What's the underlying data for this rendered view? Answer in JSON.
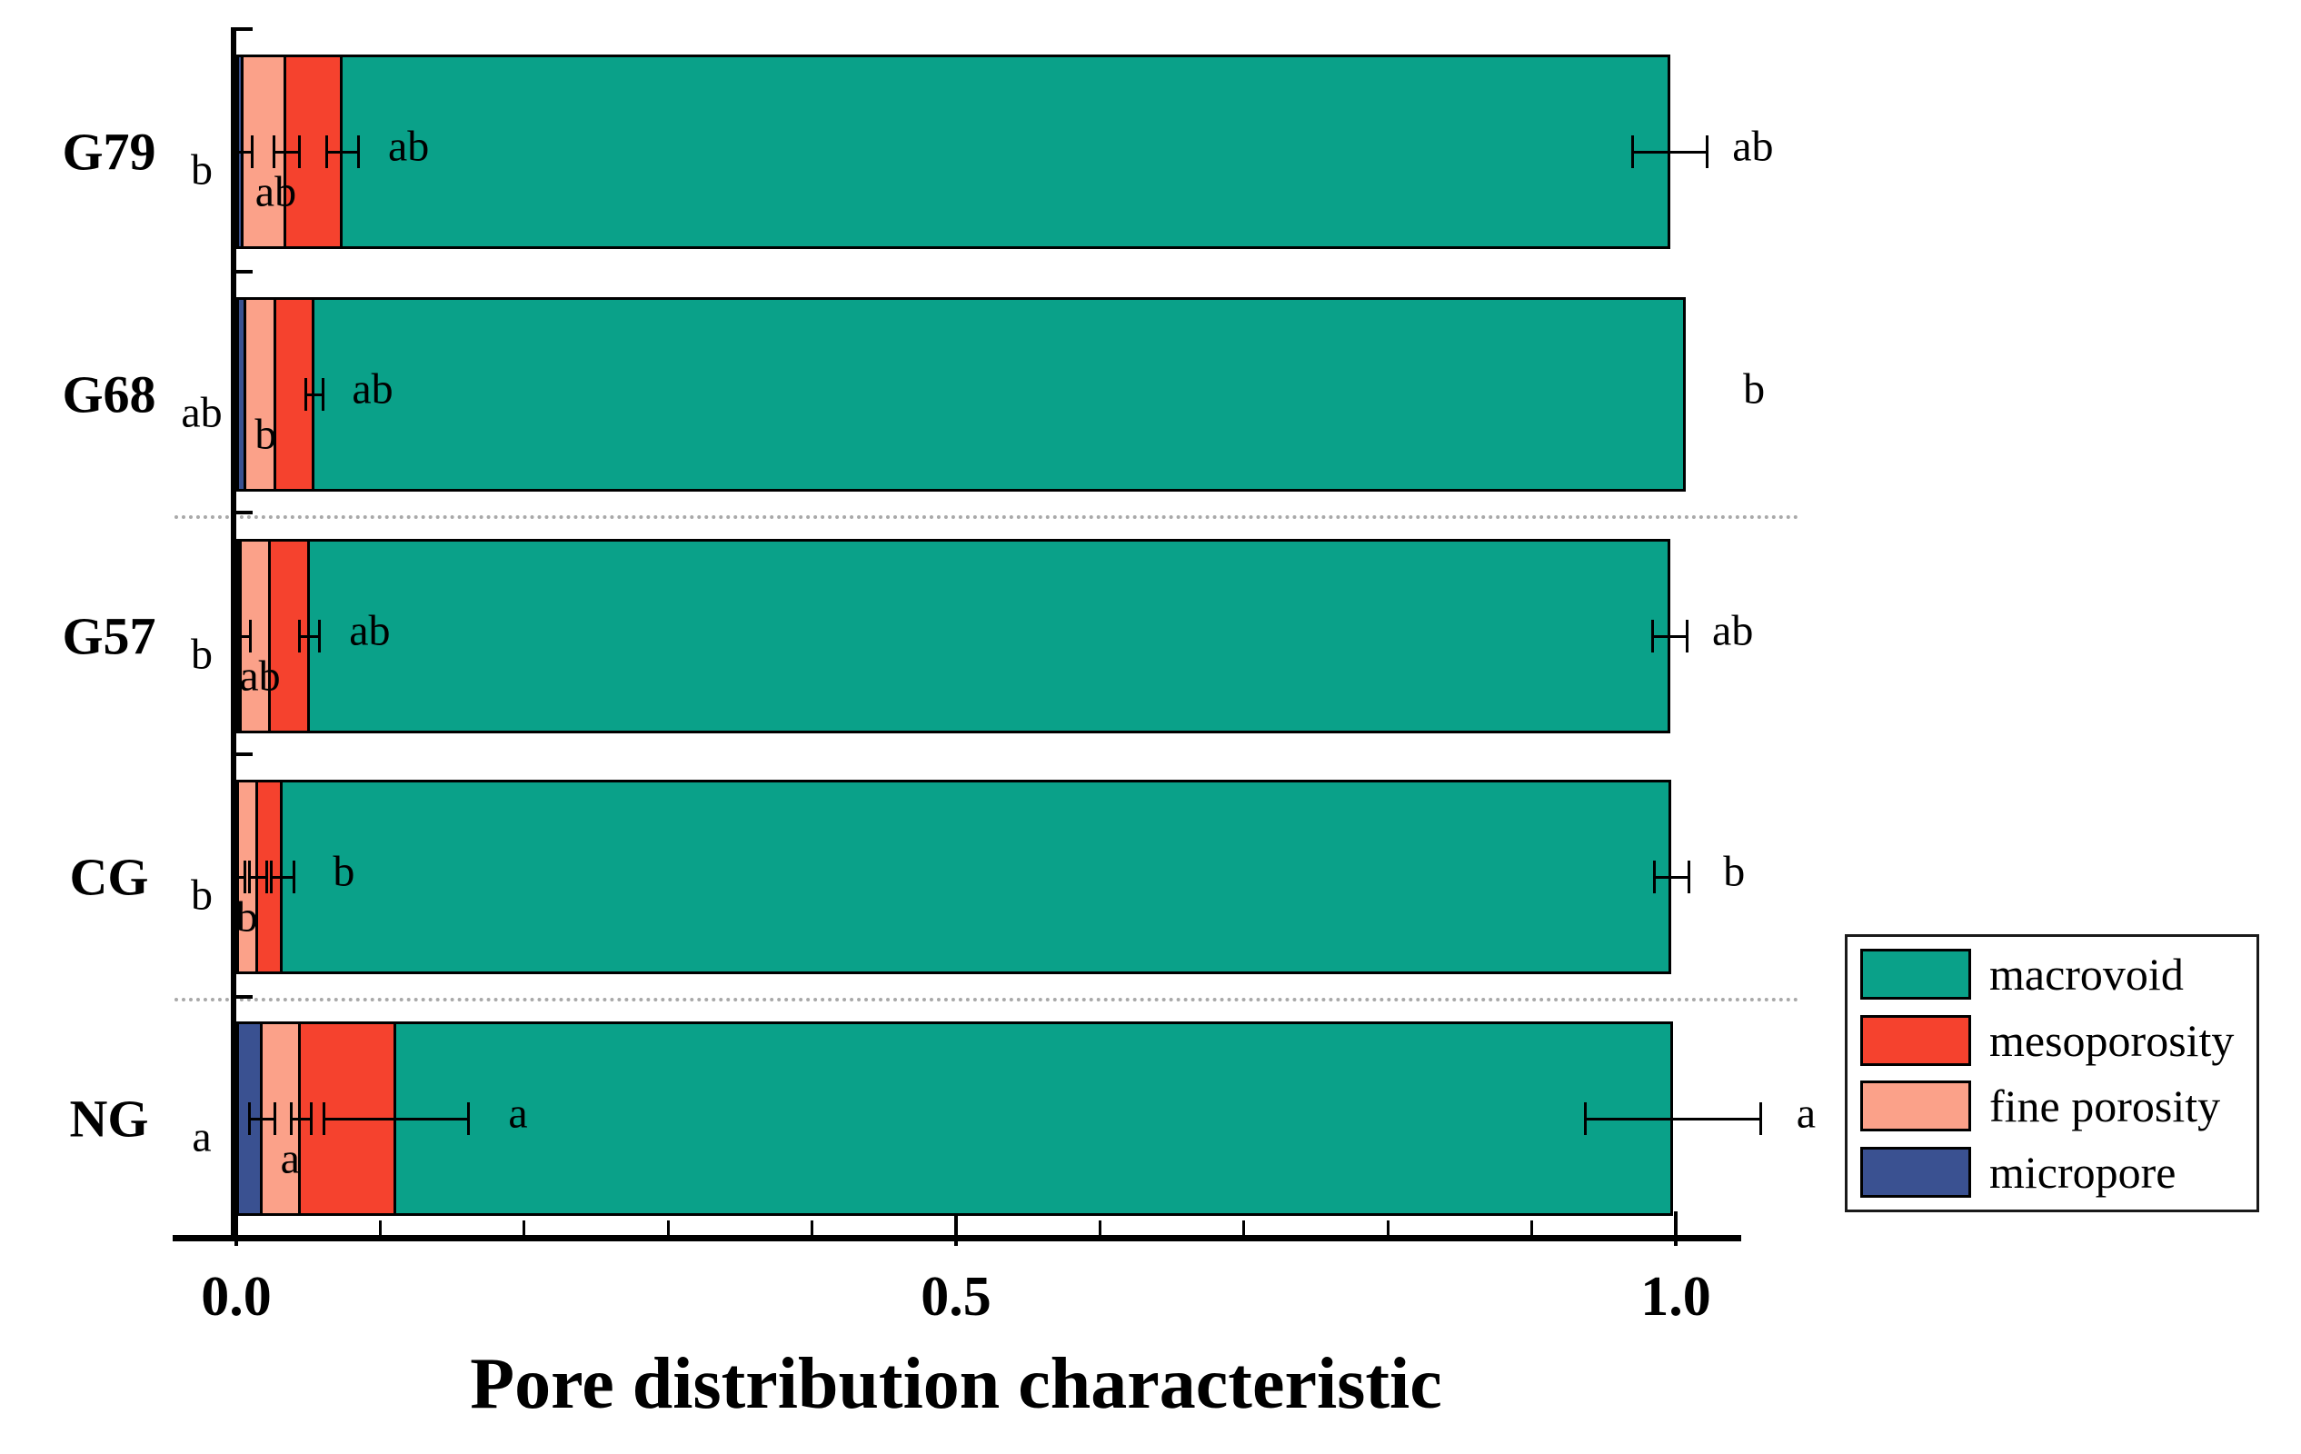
{
  "figure": {
    "background": "#ffffff"
  },
  "axis": {
    "x_major_ticks": [
      {
        "value": 0.0,
        "label": "0.0"
      },
      {
        "value": 0.5,
        "label": "0.5"
      },
      {
        "value": 1.0,
        "label": "1.0"
      }
    ],
    "x_minor_tick_values": [
      0.1,
      0.2,
      0.3,
      0.4,
      0.6,
      0.7,
      0.8,
      0.9
    ]
  },
  "legend": {
    "items": [
      {
        "label": "macrovoid",
        "color": "#0aa189"
      },
      {
        "label": "mesoporosity",
        "color": "#f5422e"
      },
      {
        "label": "fine porosity",
        "color": "#fba189"
      },
      {
        "label": "micropore",
        "color": "#3a5191"
      }
    ]
  },
  "colors": {
    "macrovoid": "#0aa189",
    "mesoporosity": "#f5422e",
    "fine_porosity": "#fba189",
    "micropore": "#3a5191",
    "axis": "#000000",
    "separator": "#a9a9a9"
  },
  "chart_data": {
    "type": "bar",
    "orientation": "horizontal",
    "stacked": true,
    "xlabel": "Pore distribution characteristic",
    "xlim": [
      -0.045,
      1.045
    ],
    "grid": "two dotted horizontal separators between category groups",
    "legend_position": "lower right",
    "categories": [
      "G79",
      "G68",
      "G57",
      "CG",
      "NG"
    ],
    "series": [
      {
        "name": "micropore",
        "color": "#3a5191",
        "values": [
          0.005,
          0.007,
          0.004,
          0.002,
          0.018
        ],
        "errors": [
          0.006,
          null,
          0.006,
          0.004,
          0.009
        ],
        "letters": [
          "b",
          "ab",
          "b",
          "b",
          "a"
        ]
      },
      {
        "name": "fine porosity",
        "color": "#fba189",
        "values": [
          0.03,
          0.021,
          0.02,
          0.013,
          0.027
        ],
        "errors": [
          0.009,
          null,
          null,
          0.006,
          0.007
        ],
        "letters": [
          "ab",
          "b",
          "ab",
          "b",
          "a"
        ]
      },
      {
        "name": "mesoporosity",
        "color": "#f5422e",
        "values": [
          0.039,
          0.026,
          0.027,
          0.017,
          0.066
        ],
        "errors": [
          0.011,
          0.006,
          0.007,
          0.008,
          0.05
        ],
        "letters": [
          "ab",
          "ab",
          "ab",
          "b",
          "a"
        ]
      },
      {
        "name": "macrovoid",
        "color": "#0aa189",
        "values": [
          0.922,
          0.953,
          0.945,
          0.965,
          0.887
        ],
        "errors": [
          0.026,
          null,
          0.012,
          0.012,
          0.061
        ],
        "letters": [
          "ab",
          "b",
          "ab",
          "b",
          "a"
        ]
      }
    ],
    "separators_after_row_index": [
      1,
      3
    ]
  }
}
